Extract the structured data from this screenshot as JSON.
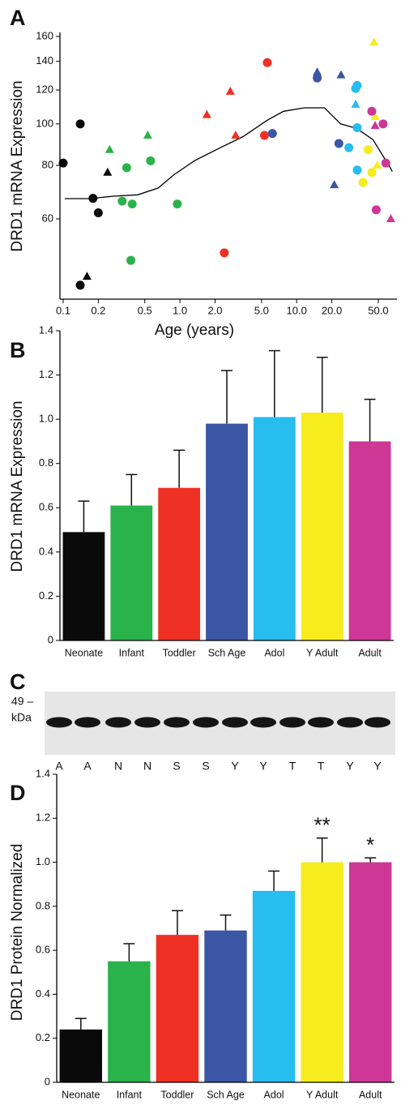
{
  "chart_data": [
    {
      "type": "scatter",
      "panel": "A",
      "xlabel": "Age (years)",
      "ylabel": "DRD1  mRNA Expression",
      "xscale": "log",
      "yscale": "log",
      "xlim": [
        0.1,
        70
      ],
      "ylim": [
        40,
        160
      ],
      "xticks": [
        0.1,
        0.2,
        0.5,
        {
          "value": 1,
          "label": "1.0"
        },
        {
          "value": 2,
          "label": "2.0"
        },
        {
          "value": 5,
          "label": "5.0"
        },
        {
          "value": 10,
          "label": "10.0"
        },
        {
          "value": 20,
          "label": "20.0"
        },
        {
          "value": 50,
          "label": "50.0"
        }
      ],
      "yticks": [
        60,
        80,
        100,
        120,
        140,
        160
      ],
      "series": [
        {
          "color": "#0a0a0a",
          "x": [
            0.1,
            0.14,
            0.18,
            0.2,
            0.14,
            0.16,
            0.24
          ],
          "y": [
            81,
            100,
            67,
            62,
            42,
            44,
            77
          ],
          "marker": [
            "circle",
            "circle",
            "circle",
            "circle",
            "circle",
            "triangle",
            "triangle"
          ]
        },
        {
          "color": "#2bb34b",
          "x": [
            0.25,
            0.35,
            0.32,
            0.39,
            0.38,
            0.53,
            0.56,
            0.95
          ],
          "y": [
            87,
            79,
            66,
            65,
            48,
            94,
            82,
            65
          ],
          "marker": [
            "triangle",
            "circle",
            "circle",
            "circle",
            "circle",
            "triangle",
            "circle",
            "circle"
          ]
        },
        {
          "color": "#ee3124",
          "x": [
            1.7,
            2.7,
            3.0,
            2.4,
            5.6,
            5.3
          ],
          "y": [
            105,
            119,
            94,
            50,
            139,
            94
          ],
          "marker": [
            "triangle",
            "triangle",
            "triangle",
            "circle",
            "circle",
            "circle"
          ]
        },
        {
          "color": "#3a56a5",
          "x": [
            6.2,
            15,
            15,
            24,
            23,
            21
          ],
          "y": [
            95,
            128,
            132,
            130,
            90,
            72
          ],
          "marker": [
            "circle",
            "circle",
            "triangle",
            "triangle",
            "circle",
            "triangle"
          ]
        },
        {
          "color": "#27bdee",
          "x": [
            33,
            32,
            32,
            33,
            28,
            33
          ],
          "y": [
            123,
            121,
            111,
            98,
            88,
            78
          ],
          "marker": [
            "circle",
            "circle",
            "triangle",
            "circle",
            "circle",
            "circle"
          ]
        },
        {
          "color": "#f7ec1d",
          "x": [
            46,
            47,
            41,
            44,
            37,
            49
          ],
          "y": [
            155,
            104,
            87,
            77,
            73,
            80
          ],
          "marker": [
            "triangle",
            "triangle",
            "circle",
            "circle",
            "circle",
            "triangle"
          ]
        },
        {
          "color": "#cd3796",
          "x": [
            44,
            47,
            55,
            58,
            48,
            64
          ],
          "y": [
            107,
            99,
            100,
            81,
            63,
            60
          ],
          "marker": [
            "circle",
            "triangle",
            "circle",
            "circle",
            "circle",
            "triangle"
          ]
        }
      ],
      "curve": {
        "color": "#000000",
        "x": [
          0.103,
          0.167,
          0.27,
          0.435,
          0.65,
          0.89,
          1.33,
          2.15,
          3.47,
          5.6,
          7.7,
          11.6,
          17.3,
          23.8,
          32.6,
          45,
          62,
          66
        ],
        "y": [
          66.9,
          66.9,
          67.8,
          68.3,
          70.8,
          76.1,
          82.0,
          87.6,
          93.4,
          102,
          107,
          109,
          109,
          100,
          97.6,
          91.9,
          79.8,
          77.4
        ]
      }
    },
    {
      "type": "bar",
      "panel": "B",
      "ylabel": "DRD1  mRNA Expression",
      "categories": [
        "Neonate",
        "Infant",
        "Toddler",
        "Sch Age",
        "Adol",
        "Y Adult",
        "Adult"
      ],
      "values": [
        0.49,
        0.61,
        0.69,
        0.98,
        1.01,
        1.03,
        0.9
      ],
      "errors": [
        0.14,
        0.14,
        0.17,
        0.24,
        0.3,
        0.25,
        0.19
      ],
      "colors": [
        "#0a0a0a",
        "#2bb34b",
        "#ee3124",
        "#3a56a5",
        "#27bdee",
        "#f7ec1d",
        "#cd3796"
      ],
      "ylim": [
        0,
        1.4
      ],
      "yticks": [
        0,
        0.2,
        0.4,
        0.6,
        0.8,
        {
          "value": 1,
          "label": "1.0"
        },
        1.2,
        1.4
      ]
    },
    {
      "type": "bar",
      "panel": "D",
      "ylabel": "DRD1  Protein Normalized",
      "categories": [
        "Neonate",
        "Infant",
        "Toddler",
        "Sch Age",
        "Adol",
        "Y Adult",
        "Adult"
      ],
      "values": [
        0.24,
        0.55,
        0.67,
        0.69,
        0.87,
        1.0,
        1.0
      ],
      "errors": [
        0.05,
        0.08,
        0.11,
        0.07,
        0.09,
        0.11,
        0.02
      ],
      "annotations": [
        null,
        null,
        null,
        null,
        null,
        "**",
        "*"
      ],
      "colors": [
        "#0a0a0a",
        "#2bb34b",
        "#ee3124",
        "#3a56a5",
        "#27bdee",
        "#f7ec1d",
        "#cd3796"
      ],
      "ylim": [
        0,
        1.4
      ],
      "yticks": [
        0,
        0.2,
        0.4,
        0.6,
        0.8,
        {
          "value": 1,
          "label": "1.0"
        },
        1.2,
        1.4
      ]
    }
  ],
  "blot": {
    "panel": "C",
    "marker": "49 –",
    "unit": "kDa",
    "lanes": [
      "A",
      "A",
      "N",
      "N",
      "S",
      "S",
      "Y",
      "Y",
      "T",
      "T",
      "Y",
      "Y"
    ]
  }
}
